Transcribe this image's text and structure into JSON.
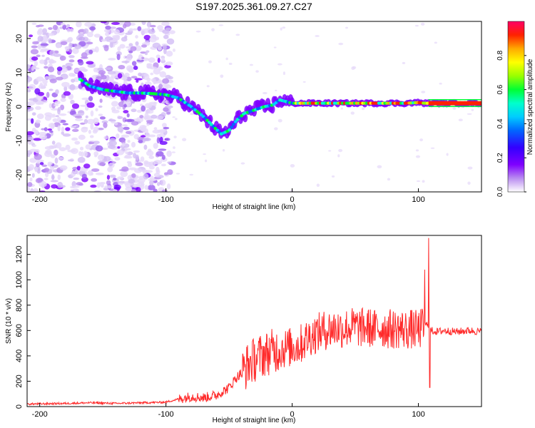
{
  "figure_title": "S197.2025.361.09.27.C27",
  "chart_data": [
    {
      "type": "heatmap",
      "title": "S197.2025.361.09.27.C27",
      "xlabel": "Height of straight line (km)",
      "ylabel": "Frequency (Hz)",
      "xlim": [
        -210,
        150
      ],
      "ylim": [
        -25,
        25
      ],
      "xticks": [
        -200,
        -100,
        0,
        100
      ],
      "yticks": [
        -20,
        -10,
        0,
        10,
        20
      ],
      "colorbar": {
        "label": "Normalized spectral amplitude",
        "range": [
          0,
          1
        ],
        "ticks": [
          0.0,
          0.2,
          0.4,
          0.6,
          0.8
        ],
        "colormap": [
          "#ffffff",
          "#b98cf0",
          "#7f00ff",
          "#3300ff",
          "#0066ff",
          "#00ccff",
          "#00ffcc",
          "#00ff33",
          "#99ff00",
          "#ffff00",
          "#ffaa00",
          "#ff2200",
          "#ff0066"
        ]
      },
      "ridge": {
        "x": [
          -168,
          -160,
          -150,
          -140,
          -130,
          -120,
          -110,
          -100,
          -90,
          -80,
          -70,
          -62,
          -56,
          -50,
          -44,
          -38,
          -30,
          -22,
          -15,
          -10,
          -5,
          0,
          10,
          30,
          50,
          70,
          90,
          100,
          105,
          150
        ],
        "y": [
          8,
          6,
          5,
          4.5,
          4,
          4,
          3.8,
          3.5,
          2.5,
          0,
          -3,
          -6,
          -8,
          -7,
          -4,
          -2,
          -1,
          0,
          0.5,
          2,
          1.5,
          1,
          1,
          1,
          1,
          1,
          1,
          1.2,
          1,
          1
        ]
      }
    },
    {
      "type": "line",
      "title": "",
      "xlabel": "Height of straight line (km)",
      "ylabel": "SNR (10 * v/v)",
      "xlim": [
        -210,
        150
      ],
      "ylim": [
        0,
        1350
      ],
      "xticks": [
        -200,
        -100,
        0,
        100
      ],
      "yticks": [
        0,
        200,
        400,
        600,
        800,
        1000,
        1200
      ],
      "series": [
        {
          "name": "SNR",
          "color": "#ff2a2a",
          "x": [
            -210,
            -180,
            -160,
            -140,
            -120,
            -100,
            -90,
            -80,
            -70,
            -60,
            -50,
            -45,
            -40,
            -35,
            -30,
            -25,
            -20,
            -15,
            -10,
            -5,
            0,
            5,
            10,
            15,
            20,
            25,
            30,
            35,
            40,
            45,
            50,
            55,
            60,
            65,
            70,
            75,
            80,
            85,
            90,
            95,
            100,
            105,
            108,
            110,
            115,
            120,
            130,
            140,
            150
          ],
          "y": [
            20,
            25,
            30,
            25,
            30,
            35,
            60,
            80,
            70,
            90,
            150,
            220,
            270,
            330,
            370,
            400,
            420,
            440,
            450,
            460,
            470,
            480,
            520,
            560,
            580,
            600,
            610,
            620,
            615,
            625,
            630,
            620,
            625,
            610,
            620,
            615,
            610,
            615,
            605,
            610,
            600,
            640,
            650,
            600,
            590,
            600,
            590,
            600,
            590
          ]
        }
      ],
      "spikes": [
        {
          "x": 105,
          "y": 1080
        },
        {
          "x": 108,
          "y": 1330
        },
        {
          "x": 109,
          "y": 150
        }
      ]
    }
  ]
}
